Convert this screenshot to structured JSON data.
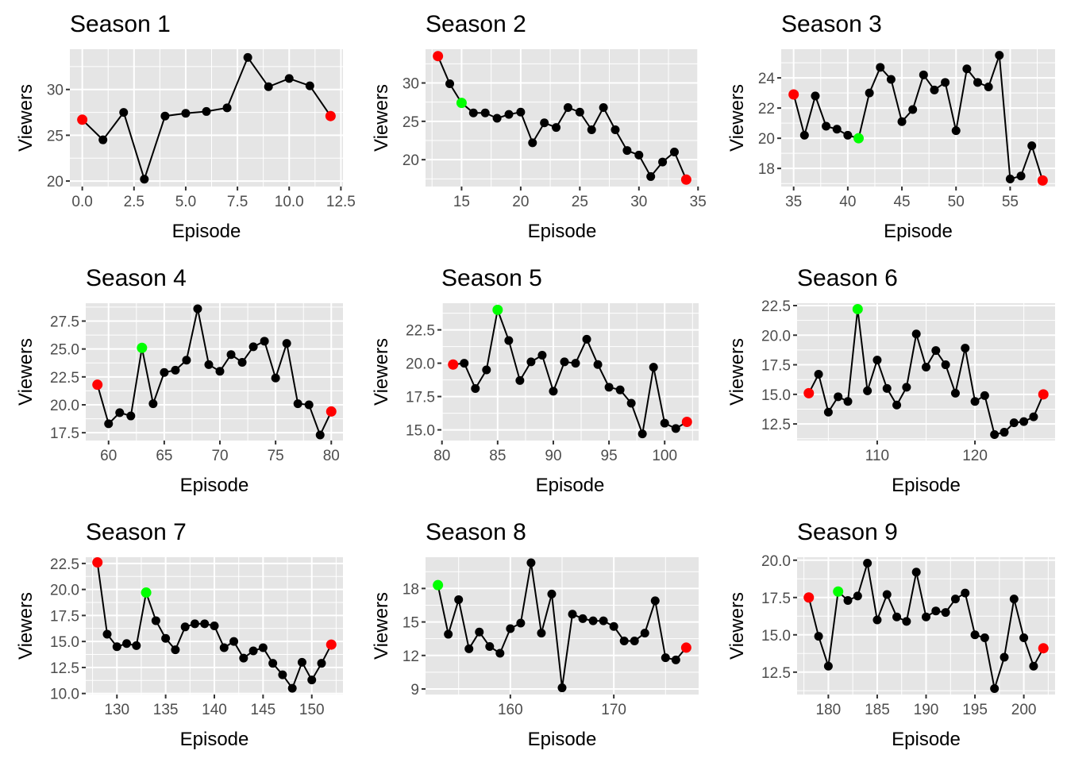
{
  "figure": {
    "x_axis_title": "Episode",
    "y_axis_title": "Viewers",
    "colors": {
      "panel_background": "#e5e5e5",
      "grid": "#ffffff",
      "line": "#000000",
      "point_default": "#000000",
      "point_endpoint": "#ff0000",
      "point_highlight": "#00ff00",
      "tick_label": "#4d4d4d"
    }
  },
  "chart_data": [
    {
      "type": "line",
      "title": "Season 1",
      "xlabel": "Episode",
      "ylabel": "Viewers",
      "xlim": [
        -0.6,
        12.6
      ],
      "ylim": [
        19.4,
        34.4
      ],
      "xticks": [
        0.0,
        2.5,
        5.0,
        7.5,
        10.0,
        12.5
      ],
      "xtick_labels": [
        "0.0",
        "2.5",
        "5.0",
        "7.5",
        "10.0",
        "12.5"
      ],
      "yticks": [
        20,
        25,
        30
      ],
      "ytick_labels": [
        "20",
        "25",
        "30"
      ],
      "x": [
        0,
        1,
        2,
        3,
        4,
        5,
        6,
        7,
        8,
        9,
        10,
        11,
        12
      ],
      "y": [
        26.7,
        24.5,
        27.5,
        20.2,
        27.1,
        27.4,
        27.6,
        28.0,
        33.5,
        30.3,
        31.2,
        30.4,
        27.1
      ],
      "point_colors": [
        "red",
        "black",
        "black",
        "black",
        "black",
        "black",
        "black",
        "black",
        "black",
        "black",
        "black",
        "black",
        "red"
      ]
    },
    {
      "type": "line",
      "title": "Season 2",
      "xlabel": "Episode",
      "ylabel": "Viewers",
      "xlim": [
        11.95,
        35.05
      ],
      "ylim": [
        16.5,
        34.4
      ],
      "xticks": [
        15,
        20,
        25,
        30,
        35
      ],
      "xtick_labels": [
        "15",
        "20",
        "25",
        "30",
        "35"
      ],
      "yticks": [
        20,
        25,
        30
      ],
      "ytick_labels": [
        "20",
        "25",
        "30"
      ],
      "x": [
        13,
        14,
        15,
        16,
        17,
        18,
        19,
        20,
        21,
        22,
        23,
        24,
        25,
        26,
        27,
        28,
        29,
        30,
        31,
        32,
        33,
        34
      ],
      "y": [
        33.5,
        29.9,
        27.4,
        26.1,
        26.1,
        25.4,
        25.9,
        26.2,
        22.2,
        24.8,
        24.2,
        26.8,
        26.2,
        23.9,
        26.8,
        23.9,
        21.2,
        20.6,
        17.8,
        19.7,
        21.0,
        17.4
      ],
      "point_colors": [
        "red",
        "black",
        "green",
        "black",
        "black",
        "black",
        "black",
        "black",
        "black",
        "black",
        "black",
        "black",
        "black",
        "black",
        "black",
        "black",
        "black",
        "black",
        "black",
        "black",
        "black",
        "red"
      ]
    },
    {
      "type": "line",
      "title": "Season 3",
      "xlabel": "Episode",
      "ylabel": "Viewers",
      "xlim": [
        33.85,
        59.15
      ],
      "ylim": [
        16.8,
        25.9
      ],
      "xticks": [
        35,
        40,
        45,
        50,
        55
      ],
      "xtick_labels": [
        "35",
        "40",
        "45",
        "50",
        "55"
      ],
      "yticks": [
        18,
        20,
        22,
        24
      ],
      "ytick_labels": [
        "18",
        "20",
        "22",
        "24"
      ],
      "x": [
        35,
        36,
        37,
        38,
        39,
        40,
        41,
        42,
        43,
        44,
        45,
        46,
        47,
        48,
        49,
        50,
        51,
        52,
        53,
        54,
        55,
        56,
        57,
        58
      ],
      "y": [
        22.9,
        20.2,
        22.8,
        20.8,
        20.6,
        20.2,
        20.0,
        23.0,
        24.7,
        23.9,
        21.1,
        21.9,
        24.2,
        23.2,
        23.7,
        20.5,
        24.6,
        23.7,
        23.4,
        25.5,
        17.3,
        17.5,
        19.5,
        17.2
      ],
      "point_colors": [
        "red",
        "black",
        "black",
        "black",
        "black",
        "black",
        "green",
        "black",
        "black",
        "black",
        "black",
        "black",
        "black",
        "black",
        "black",
        "black",
        "black",
        "black",
        "black",
        "black",
        "black",
        "black",
        "black",
        "red"
      ]
    },
    {
      "type": "line",
      "title": "Season 4",
      "xlabel": "Episode",
      "ylabel": "Viewers",
      "xlim": [
        57.95,
        81.05
      ],
      "ylim": [
        16.8,
        29.1
      ],
      "xticks": [
        60,
        65,
        70,
        75,
        80
      ],
      "xtick_labels": [
        "60",
        "65",
        "70",
        "75",
        "80"
      ],
      "yticks": [
        17.5,
        20.0,
        22.5,
        25.0,
        27.5
      ],
      "ytick_labels": [
        "17.5",
        "20.0",
        "22.5",
        "25.0",
        "27.5"
      ],
      "x": [
        59,
        60,
        61,
        62,
        63,
        64,
        65,
        66,
        67,
        68,
        69,
        70,
        71,
        72,
        73,
        74,
        75,
        76,
        77,
        78,
        79,
        80
      ],
      "y": [
        21.8,
        18.3,
        19.3,
        19.0,
        25.1,
        20.1,
        22.9,
        23.1,
        24.0,
        28.6,
        23.6,
        23.0,
        24.5,
        23.8,
        25.2,
        25.7,
        22.4,
        25.5,
        20.1,
        20.0,
        17.3,
        19.4
      ],
      "point_colors": [
        "red",
        "black",
        "black",
        "black",
        "green",
        "black",
        "black",
        "black",
        "black",
        "black",
        "black",
        "black",
        "black",
        "black",
        "black",
        "black",
        "black",
        "black",
        "black",
        "black",
        "black",
        "red"
      ]
    },
    {
      "type": "line",
      "title": "Season 5",
      "xlabel": "Episode",
      "ylabel": "Viewers",
      "xlim": [
        79.95,
        103.05
      ],
      "ylim": [
        14.2,
        24.5
      ],
      "xticks": [
        80,
        85,
        90,
        95,
        100
      ],
      "xtick_labels": [
        "80",
        "85",
        "90",
        "95",
        "100"
      ],
      "yticks": [
        15.0,
        17.5,
        20.0,
        22.5
      ],
      "ytick_labels": [
        "15.0",
        "17.5",
        "20.0",
        "22.5"
      ],
      "x": [
        81,
        82,
        83,
        84,
        85,
        86,
        87,
        88,
        89,
        90,
        91,
        92,
        93,
        94,
        95,
        96,
        97,
        98,
        99,
        100,
        101,
        102
      ],
      "y": [
        19.9,
        20.0,
        18.1,
        19.5,
        24.0,
        21.7,
        18.7,
        20.1,
        20.6,
        17.9,
        20.1,
        20.0,
        21.8,
        19.9,
        18.2,
        18.0,
        17.0,
        14.7,
        19.7,
        15.5,
        15.1,
        15.6
      ],
      "point_colors": [
        "red",
        "black",
        "black",
        "black",
        "green",
        "black",
        "black",
        "black",
        "black",
        "black",
        "black",
        "black",
        "black",
        "black",
        "black",
        "black",
        "black",
        "black",
        "black",
        "black",
        "black",
        "red"
      ]
    },
    {
      "type": "line",
      "title": "Season 6",
      "xlabel": "Episode",
      "ylabel": "Viewers",
      "xlim": [
        101.8,
        128.2
      ],
      "ylim": [
        11.1,
        22.7
      ],
      "xticks": [
        110,
        120
      ],
      "xtick_labels": [
        "110",
        "120"
      ],
      "yticks": [
        12.5,
        15.0,
        17.5,
        20.0,
        22.5
      ],
      "ytick_labels": [
        "12.5",
        "15.0",
        "17.5",
        "20.0",
        "22.5"
      ],
      "x": [
        103,
        104,
        105,
        106,
        107,
        108,
        109,
        110,
        111,
        112,
        113,
        114,
        115,
        116,
        117,
        118,
        119,
        120,
        121,
        122,
        123,
        124,
        125,
        126,
        127
      ],
      "y": [
        15.1,
        16.7,
        13.5,
        14.8,
        14.4,
        22.2,
        15.3,
        17.9,
        15.5,
        14.1,
        15.6,
        20.1,
        17.3,
        18.7,
        17.5,
        15.1,
        18.9,
        14.4,
        14.9,
        11.6,
        11.8,
        12.6,
        12.7,
        13.1,
        15.0
      ],
      "point_colors": [
        "red",
        "black",
        "black",
        "black",
        "black",
        "green",
        "black",
        "black",
        "black",
        "black",
        "black",
        "black",
        "black",
        "black",
        "black",
        "black",
        "black",
        "black",
        "black",
        "black",
        "black",
        "black",
        "black",
        "black",
        "red"
      ]
    },
    {
      "type": "line",
      "title": "Season 7",
      "xlabel": "Episode",
      "ylabel": "Viewers",
      "xlim": [
        126.8,
        153.2
      ],
      "ylim": [
        9.9,
        23.1
      ],
      "xticks": [
        130,
        135,
        140,
        145,
        150
      ],
      "xtick_labels": [
        "130",
        "135",
        "140",
        "145",
        "150"
      ],
      "yticks": [
        10.0,
        12.5,
        15.0,
        17.5,
        20.0,
        22.5
      ],
      "ytick_labels": [
        "10.0",
        "12.5",
        "15.0",
        "17.5",
        "20.0",
        "22.5"
      ],
      "x": [
        128,
        129,
        130,
        131,
        132,
        133,
        134,
        135,
        136,
        137,
        138,
        139,
        140,
        141,
        142,
        143,
        144,
        145,
        146,
        147,
        148,
        149,
        150,
        151,
        152
      ],
      "y": [
        22.6,
        15.7,
        14.5,
        14.8,
        14.6,
        19.7,
        17.0,
        15.3,
        14.2,
        16.4,
        16.7,
        16.7,
        16.5,
        14.4,
        15.0,
        13.4,
        14.1,
        14.4,
        12.9,
        11.8,
        10.5,
        13.0,
        11.3,
        12.9,
        14.7
      ],
      "point_colors": [
        "red",
        "black",
        "black",
        "black",
        "black",
        "green",
        "black",
        "black",
        "black",
        "black",
        "black",
        "black",
        "black",
        "black",
        "black",
        "black",
        "black",
        "black",
        "black",
        "black",
        "black",
        "black",
        "black",
        "black",
        "red"
      ]
    },
    {
      "type": "line",
      "title": "Season 8",
      "xlabel": "Episode",
      "ylabel": "Viewers",
      "xlim": [
        151.8,
        178.2
      ],
      "ylim": [
        8.5,
        20.8
      ],
      "xticks": [
        160,
        170
      ],
      "xtick_labels": [
        "160",
        "170"
      ],
      "yticks": [
        9,
        12,
        15,
        18
      ],
      "ytick_labels": [
        "9",
        "12",
        "15",
        "18"
      ],
      "x": [
        153,
        154,
        155,
        156,
        157,
        158,
        159,
        160,
        161,
        162,
        163,
        164,
        165,
        166,
        167,
        168,
        169,
        170,
        171,
        172,
        173,
        174,
        175,
        176,
        177
      ],
      "y": [
        18.3,
        13.9,
        17.0,
        12.6,
        14.1,
        12.8,
        12.2,
        14.4,
        14.9,
        20.3,
        14.0,
        17.5,
        9.1,
        15.7,
        15.3,
        15.1,
        15.1,
        14.6,
        13.3,
        13.3,
        14.0,
        16.9,
        11.8,
        11.6,
        12.7
      ],
      "point_colors": [
        "green",
        "black",
        "black",
        "black",
        "black",
        "black",
        "black",
        "black",
        "black",
        "black",
        "black",
        "black",
        "black",
        "black",
        "black",
        "black",
        "black",
        "black",
        "black",
        "black",
        "black",
        "black",
        "black",
        "black",
        "red"
      ]
    },
    {
      "type": "line",
      "title": "Season 9",
      "xlabel": "Episode",
      "ylabel": "Viewers",
      "xlim": [
        176.8,
        203.2
      ],
      "ylim": [
        11.0,
        20.2
      ],
      "xticks": [
        180,
        185,
        190,
        195,
        200
      ],
      "xtick_labels": [
        "180",
        "185",
        "190",
        "195",
        "200"
      ],
      "yticks": [
        12.5,
        15.0,
        17.5,
        20.0
      ],
      "ytick_labels": [
        "12.5",
        "15.0",
        "17.5",
        "20.0"
      ],
      "x": [
        178,
        179,
        180,
        181,
        182,
        183,
        184,
        185,
        186,
        187,
        188,
        189,
        190,
        191,
        192,
        193,
        194,
        195,
        196,
        197,
        198,
        199,
        200,
        201,
        202
      ],
      "y": [
        17.5,
        14.9,
        12.9,
        17.9,
        17.3,
        17.6,
        19.8,
        16.0,
        17.7,
        16.2,
        15.9,
        19.2,
        16.2,
        16.6,
        16.5,
        17.4,
        17.8,
        15.0,
        14.8,
        11.4,
        13.5,
        17.4,
        14.8,
        12.9,
        14.1
      ],
      "point_colors": [
        "red",
        "black",
        "black",
        "green",
        "black",
        "black",
        "black",
        "black",
        "black",
        "black",
        "black",
        "black",
        "black",
        "black",
        "black",
        "black",
        "black",
        "black",
        "black",
        "black",
        "black",
        "black",
        "black",
        "black",
        "red"
      ]
    }
  ]
}
